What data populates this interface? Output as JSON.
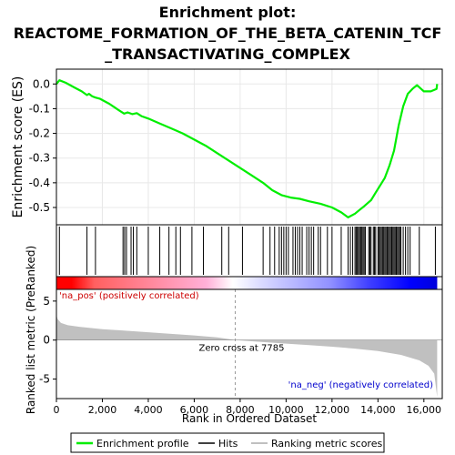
{
  "title_lines": [
    "Enrichment plot:",
    "REACTOME_FORMATION_OF_THE_BETA_CATENIN_TCF",
    "_TRANSACTIVATING_COMPLEX"
  ],
  "chart_data": {
    "type": "line",
    "panels": {
      "es": {
        "ylabel": "Enrichment score (ES)",
        "ylim": [
          -0.57,
          0.06
        ],
        "yticks": [
          0.0,
          -0.1,
          -0.2,
          -0.3,
          -0.4,
          -0.5
        ],
        "ytick_labels": [
          "0.0",
          "-0.1",
          "-0.2",
          "-0.3",
          "-0.4",
          "-0.5"
        ],
        "series": [
          {
            "name": "Enrichment profile",
            "color": "#00ee00",
            "points": [
              [
                0,
                0.0
              ],
              [
                130,
                0.015
              ],
              [
                400,
                0.005
              ],
              [
                800,
                -0.015
              ],
              [
                1100,
                -0.03
              ],
              [
                1330,
                -0.045
              ],
              [
                1420,
                -0.04
              ],
              [
                1560,
                -0.05
              ],
              [
                1700,
                -0.055
              ],
              [
                1900,
                -0.06
              ],
              [
                2300,
                -0.08
              ],
              [
                2700,
                -0.105
              ],
              [
                2950,
                -0.12
              ],
              [
                3100,
                -0.115
              ],
              [
                3300,
                -0.122
              ],
              [
                3500,
                -0.118
              ],
              [
                3700,
                -0.13
              ],
              [
                4000,
                -0.14
              ],
              [
                4500,
                -0.16
              ],
              [
                5000,
                -0.18
              ],
              [
                5500,
                -0.2
              ],
              [
                6000,
                -0.225
              ],
              [
                6500,
                -0.25
              ],
              [
                7000,
                -0.28
              ],
              [
                7500,
                -0.31
              ],
              [
                8000,
                -0.34
              ],
              [
                8500,
                -0.37
              ],
              [
                9000,
                -0.4
              ],
              [
                9400,
                -0.43
              ],
              [
                9800,
                -0.45
              ],
              [
                10200,
                -0.46
              ],
              [
                10600,
                -0.465
              ],
              [
                11000,
                -0.475
              ],
              [
                11500,
                -0.485
              ],
              [
                12000,
                -0.5
              ],
              [
                12400,
                -0.52
              ],
              [
                12700,
                -0.54
              ],
              [
                13000,
                -0.525
              ],
              [
                13200,
                -0.51
              ],
              [
                13400,
                -0.495
              ],
              [
                13700,
                -0.47
              ],
              [
                13900,
                -0.44
              ],
              [
                14100,
                -0.41
              ],
              [
                14300,
                -0.38
              ],
              [
                14500,
                -0.33
              ],
              [
                14700,
                -0.27
              ],
              [
                14900,
                -0.17
              ],
              [
                15100,
                -0.09
              ],
              [
                15300,
                -0.04
              ],
              [
                15500,
                -0.02
              ],
              [
                15700,
                -0.005
              ],
              [
                16000,
                -0.03
              ],
              [
                16300,
                -0.03
              ],
              [
                16550,
                -0.02
              ],
              [
                16580,
                0.0
              ]
            ]
          }
        ]
      },
      "hits": {
        "name": "Hits",
        "positions": [
          130,
          1330,
          1700,
          2900,
          2970,
          3050,
          3250,
          3350,
          3500,
          4000,
          4500,
          4900,
          5200,
          5400,
          5900,
          6400,
          7200,
          7500,
          8100,
          9000,
          9300,
          9500,
          9700,
          9800,
          9900,
          10000,
          10100,
          10300,
          10400,
          10500,
          10600,
          10700,
          10900,
          11000,
          11100,
          11200,
          11400,
          11500,
          11800,
          12000,
          12400,
          12700,
          12800,
          12900,
          13000,
          13050,
          13100,
          13150,
          13200,
          13250,
          13300,
          13350,
          13400,
          13450,
          13600,
          13650,
          13700,
          13800,
          13850,
          13900,
          14000,
          14050,
          14100,
          14150,
          14200,
          14250,
          14300,
          14350,
          14400,
          14450,
          14500,
          14550,
          14600,
          14650,
          14700,
          14750,
          14800,
          14850,
          14900,
          14950,
          15000,
          15100,
          15200,
          15300,
          15400,
          15800,
          16500
        ]
      },
      "metric": {
        "ylabel": "Ranked list metric (PreRanked)",
        "ylim": [
          -7.5,
          6.5
        ],
        "yticks": [
          5,
          0,
          -5
        ],
        "ytick_labels": [
          "5",
          "0",
          "-5"
        ],
        "series": [
          {
            "name": "Ranking metric scores",
            "color": "#c0c0c0",
            "points": [
              [
                0,
                3.2
              ],
              [
                50,
                2.7
              ],
              [
                200,
                2.2
              ],
              [
                500,
                1.9
              ],
              [
                1000,
                1.7
              ],
              [
                2000,
                1.4
              ],
              [
                3000,
                1.2
              ],
              [
                4000,
                1.0
              ],
              [
                5000,
                0.8
              ],
              [
                6000,
                0.6
              ],
              [
                7000,
                0.35
              ],
              [
                7785,
                0.0
              ],
              [
                9000,
                -0.25
              ],
              [
                10000,
                -0.45
              ],
              [
                11000,
                -0.65
              ],
              [
                12000,
                -0.85
              ],
              [
                13000,
                -1.1
              ],
              [
                14000,
                -1.4
              ],
              [
                15000,
                -1.9
              ],
              [
                15800,
                -2.6
              ],
              [
                16200,
                -3.3
              ],
              [
                16450,
                -4.3
              ],
              [
                16580,
                -7.3
              ]
            ]
          }
        ],
        "annotations": [
          {
            "text": "Zero cross at 7785",
            "x": 7785
          },
          {
            "text": "'na_pos' (positively correlated)",
            "position": "top-left",
            "color": "#cc0000"
          },
          {
            "text": "'na_neg' (negatively correlated)",
            "position": "bottom-right",
            "color": "#0000cc"
          }
        ]
      }
    },
    "xlabel": "Rank in Ordered Dataset",
    "xlim": [
      0,
      16800
    ],
    "xticks": [
      0,
      2000,
      4000,
      6000,
      8000,
      10000,
      12000,
      14000,
      16000
    ],
    "xtick_labels": [
      "0",
      "2,000",
      "4,000",
      "6,000",
      "8,000",
      "10,000",
      "12,000",
      "14,000",
      "16,000"
    ],
    "zero_cross": 7785,
    "legend": {
      "placement": "bottom",
      "entries": [
        {
          "label": "Enrichment profile",
          "color": "#00ee00"
        },
        {
          "label": "Hits",
          "color": "#000000"
        },
        {
          "label": "Ranking metric scores",
          "color": "#c0c0c0"
        }
      ]
    }
  }
}
